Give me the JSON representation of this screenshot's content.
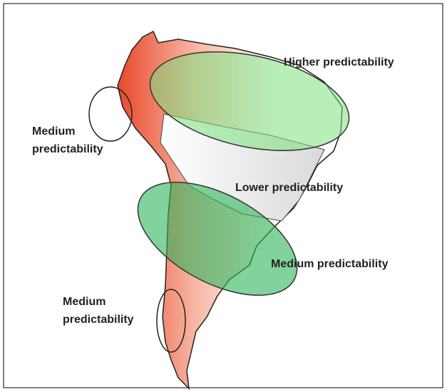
{
  "labels": [
    {
      "lines": [
        "Higher predictability"
      ]
    },
    {
      "lines": [
        "Medium",
        "predictability"
      ]
    },
    {
      "lines": [
        "Lower predictability"
      ]
    },
    {
      "lines": [
        "Medium predictability"
      ]
    },
    {
      "lines": [
        "Medium",
        "predictability"
      ]
    }
  ]
}
